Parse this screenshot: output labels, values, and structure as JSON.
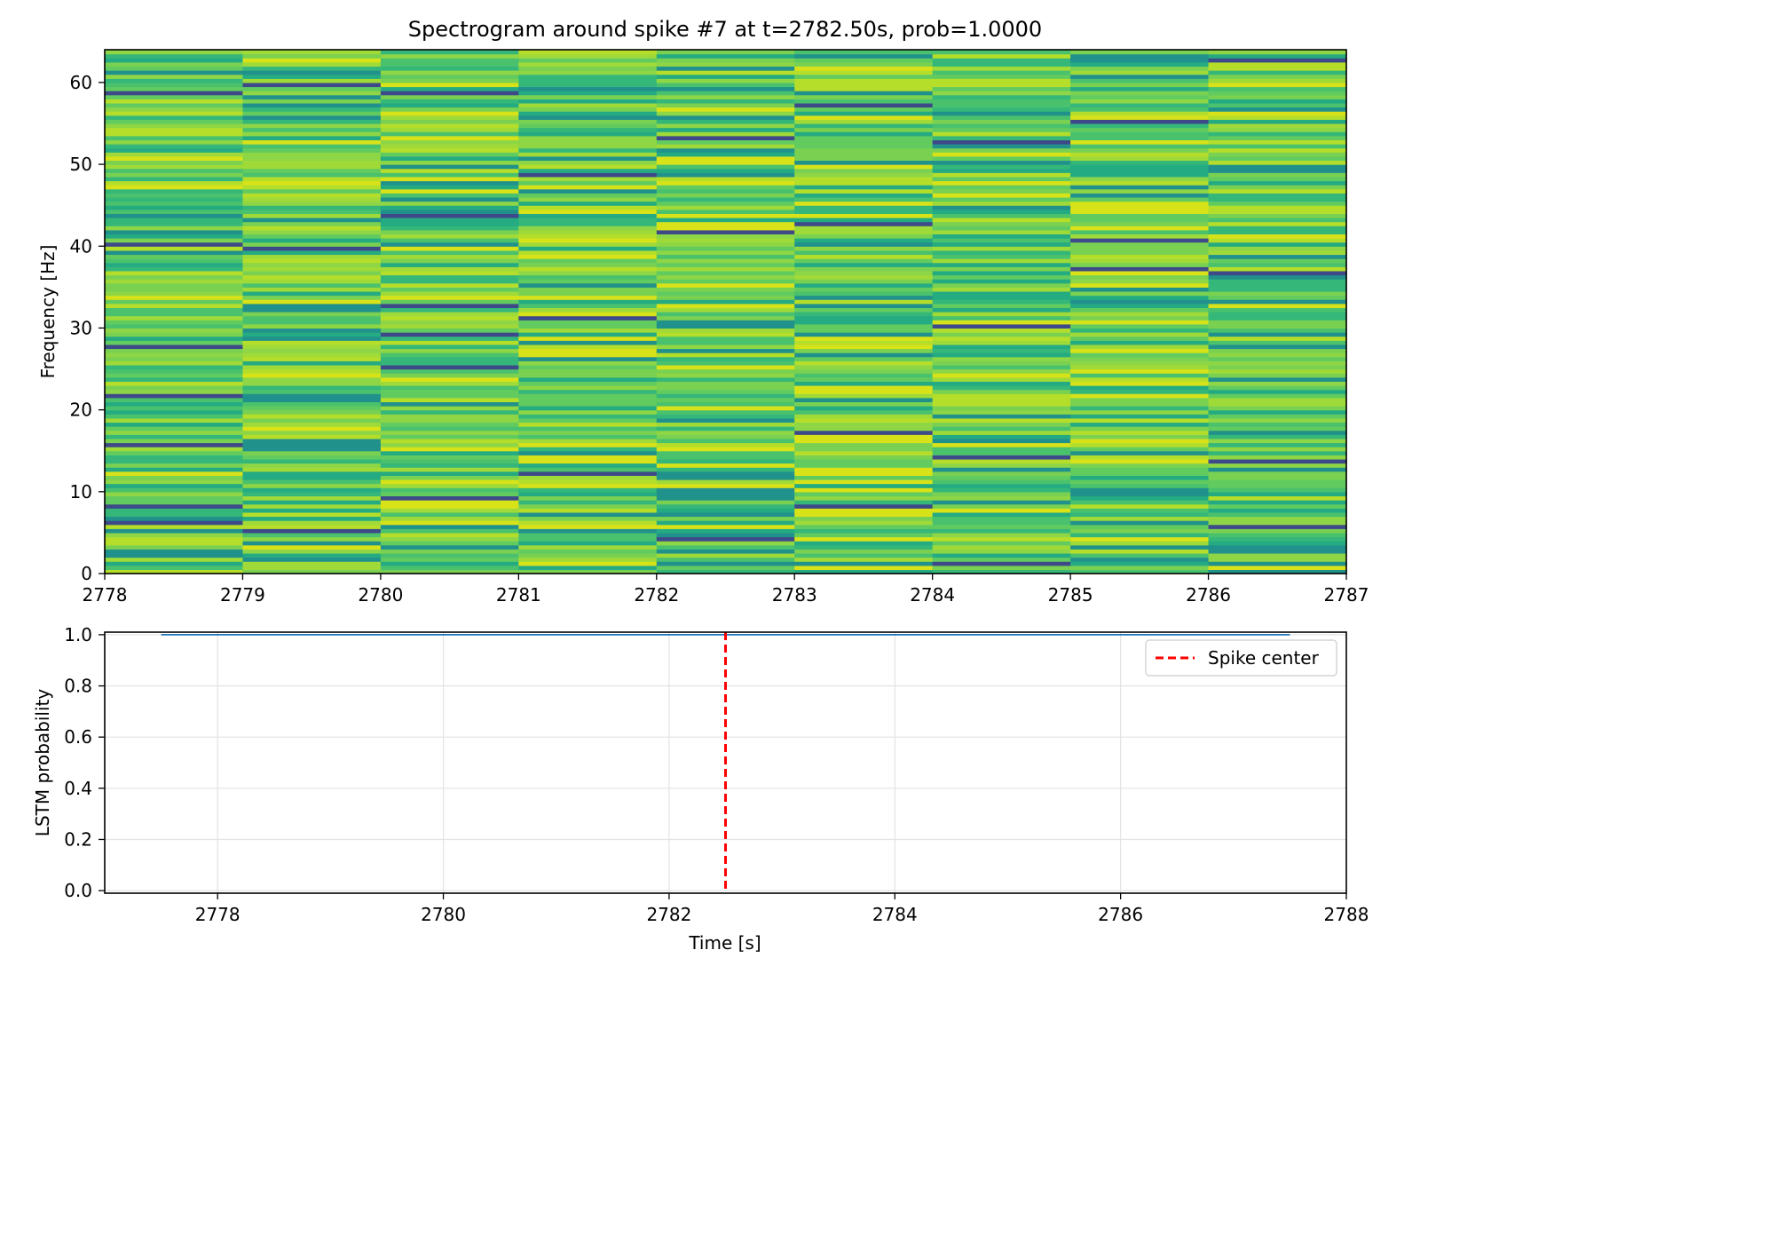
{
  "chart_data": [
    {
      "type": "heatmap",
      "title": "Spectrogram around spike #7 at t=2782.50s, prob=1.0000",
      "xlabel": "",
      "ylabel": "Frequency [Hz]",
      "xlim": [
        2778,
        2787
      ],
      "ylim": [
        0,
        64
      ],
      "xticks": [
        2778,
        2779,
        2780,
        2781,
        2782,
        2783,
        2784,
        2785,
        2786,
        2787
      ],
      "yticks": [
        0,
        10,
        20,
        30,
        40,
        50,
        60
      ],
      "colormap": "viridis (upper range)",
      "time_bins": [
        2778,
        2779,
        2780,
        2781,
        2782,
        2783,
        2784,
        2785,
        2786
      ],
      "freq_bin_hz": 0.5,
      "n_freq_bins": 128,
      "dark_bands": [
        {
          "t": 2778,
          "hz": [
            58.5,
            40.0,
            27.5,
            21.5,
            15.5,
            8.0,
            6.0
          ]
        },
        {
          "t": 2779,
          "hz": [
            59.5,
            39.5,
            5.0
          ]
        },
        {
          "t": 2780,
          "hz": [
            58.5,
            43.5,
            32.5,
            29.0,
            25.0,
            9.0
          ]
        },
        {
          "t": 2781,
          "hz": [
            48.5,
            31.0,
            12.0
          ]
        },
        {
          "t": 2782,
          "hz": [
            53.0,
            41.5,
            4.0
          ]
        },
        {
          "t": 2783,
          "hz": [
            57.0,
            42.5,
            17.0,
            8.0
          ]
        },
        {
          "t": 2784,
          "hz": [
            52.5,
            30.0,
            14.0,
            1.0
          ]
        },
        {
          "t": 2785,
          "hz": [
            55.0,
            40.5,
            37.0
          ]
        },
        {
          "t": 2786,
          "hz": [
            62.5,
            36.5,
            13.5,
            5.5
          ]
        }
      ]
    },
    {
      "type": "line",
      "title": "",
      "xlabel": "Time [s]",
      "ylabel": "LSTM probability",
      "xlim": [
        2777,
        2788
      ],
      "ylim": [
        -0.01,
        1.01
      ],
      "xticks": [
        2778,
        2780,
        2782,
        2784,
        2786,
        2788
      ],
      "yticks": [
        0.0,
        0.2,
        0.4,
        0.6,
        0.8,
        1.0
      ],
      "ytick_labels": [
        "0.0",
        "0.2",
        "0.4",
        "0.6",
        "0.8",
        "1.0"
      ],
      "grid": true,
      "series": [
        {
          "name": "LSTM probability",
          "color": "#1f77b4",
          "x": [
            2777.5,
            2787.5
          ],
          "y": [
            1.0,
            1.0
          ]
        }
      ],
      "vline": {
        "x": 2782.5,
        "color": "#ff0000",
        "style": "dashed",
        "label": "Spike center"
      },
      "legend": {
        "position": "upper-right",
        "entries": [
          "Spike center"
        ]
      }
    }
  ]
}
